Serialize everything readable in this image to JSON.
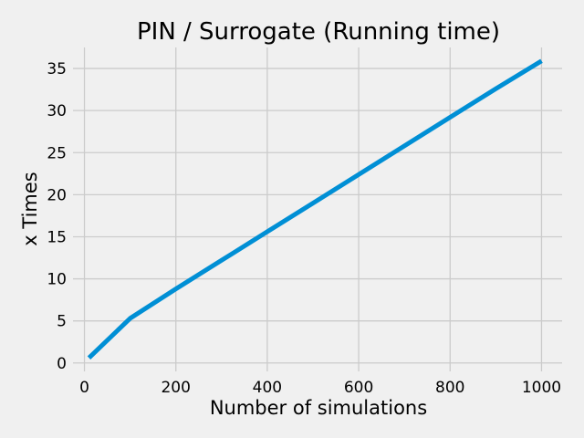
{
  "chart_data": {
    "type": "line",
    "title": "PIN / Surrogate (Running time)",
    "xlabel": "Number of simulations",
    "ylabel": "x Times",
    "xlim": [
      -25,
      1045
    ],
    "ylim": [
      -1.0,
      37.5
    ],
    "xticks": [
      0,
      200,
      400,
      600,
      800,
      1000
    ],
    "yticks": [
      0,
      5,
      10,
      15,
      20,
      25,
      30,
      35
    ],
    "grid": true,
    "colors": {
      "series": "#008fd5",
      "background": "#f0f0f0",
      "grid": "#cbcbcb"
    },
    "series": [
      {
        "x": [
          10,
          100,
          200,
          300,
          400,
          500,
          600,
          700,
          800,
          900,
          1000
        ],
        "y": [
          0.6,
          5.3,
          8.8,
          12.2,
          15.6,
          19.0,
          22.4,
          25.8,
          29.2,
          32.6,
          35.9
        ]
      }
    ]
  }
}
